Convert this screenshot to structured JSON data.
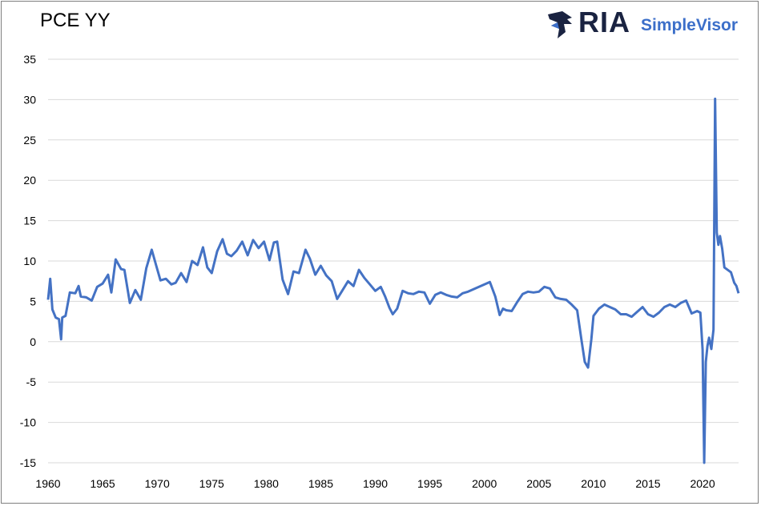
{
  "title": "PCE YY",
  "logo": {
    "brand": "RIA",
    "product": "SimpleVisor"
  },
  "colors": {
    "line": "#4472c4",
    "grid": "#d9d9d9",
    "logo_dark": "#1a2341",
    "logo_accent": "#3c6fc9"
  },
  "chart_data": {
    "type": "line",
    "title": "PCE YY",
    "xlabel": "",
    "ylabel": "",
    "xlim": [
      1960,
      2023.3
    ],
    "ylim": [
      -15,
      35
    ],
    "y_ticks": [
      35,
      30,
      25,
      20,
      15,
      10,
      5,
      0,
      -5,
      -10,
      -15
    ],
    "x_ticks": [
      1960,
      1965,
      1970,
      1975,
      1980,
      1985,
      1990,
      1995,
      2000,
      2005,
      2010,
      2015,
      2020
    ],
    "grid": true,
    "legend": "none",
    "series": [
      {
        "x": [
          1960.0,
          1960.2,
          1960.4,
          1960.7,
          1961.0,
          1961.2,
          1961.3,
          1961.6,
          1962.0,
          1962.5,
          1962.8,
          1963.0,
          1963.5,
          1964.0,
          1964.5,
          1965.0,
          1965.5,
          1965.8,
          1966.2,
          1966.7,
          1967.0,
          1967.5,
          1968.0,
          1968.5,
          1969.0,
          1969.5,
          1969.9,
          1970.3,
          1970.8,
          1971.3,
          1971.7,
          1972.2,
          1972.7,
          1973.2,
          1973.7,
          1974.2,
          1974.6,
          1975.0,
          1975.5,
          1976.0,
          1976.4,
          1976.8,
          1977.3,
          1977.8,
          1978.3,
          1978.8,
          1979.3,
          1979.8,
          1980.3,
          1980.7,
          1981.0,
          1981.5,
          1982.0,
          1982.5,
          1983.0,
          1983.6,
          1984.0,
          1984.5,
          1985.0,
          1985.5,
          1986.0,
          1986.5,
          1987.0,
          1987.5,
          1988.0,
          1988.5,
          1989.0,
          1989.5,
          1990.0,
          1990.5,
          1990.9,
          1991.3,
          1991.6,
          1992.0,
          1992.5,
          1993.0,
          1993.5,
          1994.0,
          1994.5,
          1995.0,
          1995.5,
          1996.0,
          1996.5,
          1997.0,
          1997.5,
          1998.0,
          1998.5,
          1999.0,
          1999.5,
          2000.0,
          2000.5,
          2001.0,
          2001.4,
          2001.7,
          2002.0,
          2002.5,
          2003.0,
          2003.5,
          2004.0,
          2004.5,
          2005.0,
          2005.5,
          2006.0,
          2006.5,
          2007.0,
          2007.5,
          2008.0,
          2008.5,
          2008.9,
          2009.2,
          2009.5,
          2009.8,
          2010.0,
          2010.5,
          2011.0,
          2011.5,
          2012.0,
          2012.5,
          2013.0,
          2013.5,
          2014.0,
          2014.5,
          2015.0,
          2015.5,
          2016.0,
          2016.5,
          2017.0,
          2017.5,
          2018.0,
          2018.5,
          2019.0,
          2019.5,
          2019.8,
          2020.0,
          2020.15,
          2020.3,
          2020.45,
          2020.6,
          2020.8,
          2021.0,
          2021.15,
          2021.3,
          2021.45,
          2021.6,
          2021.8,
          2022.0,
          2022.3,
          2022.6,
          2022.9,
          2023.1,
          2023.3
        ],
        "y": [
          5.2,
          7.8,
          4.0,
          3.0,
          2.8,
          0.3,
          3.0,
          3.2,
          6.1,
          6.0,
          6.9,
          5.6,
          5.5,
          5.1,
          6.8,
          7.2,
          8.3,
          6.1,
          10.2,
          9.0,
          8.9,
          4.8,
          6.4,
          5.2,
          9.1,
          11.4,
          9.5,
          7.6,
          7.8,
          7.1,
          7.3,
          8.5,
          7.4,
          10.0,
          9.5,
          11.7,
          9.2,
          8.5,
          11.2,
          12.7,
          10.9,
          10.6,
          11.3,
          12.4,
          10.7,
          12.6,
          11.6,
          12.4,
          10.1,
          12.3,
          12.4,
          7.7,
          5.9,
          8.7,
          8.5,
          11.4,
          10.3,
          8.3,
          9.4,
          8.2,
          7.5,
          5.3,
          6.4,
          7.5,
          6.9,
          8.9,
          7.9,
          7.1,
          6.3,
          6.8,
          5.6,
          4.2,
          3.4,
          4.1,
          6.3,
          6.0,
          5.9,
          6.2,
          6.1,
          4.7,
          5.8,
          6.1,
          5.8,
          5.6,
          5.5,
          6.0,
          6.2,
          6.5,
          6.8,
          7.1,
          7.4,
          5.6,
          3.3,
          4.1,
          3.9,
          3.8,
          4.9,
          5.9,
          6.2,
          6.1,
          6.2,
          6.8,
          6.6,
          5.5,
          5.3,
          5.2,
          4.6,
          3.9,
          0.2,
          -2.5,
          -3.2,
          0.3,
          3.2,
          4.1,
          4.6,
          4.3,
          4.0,
          3.4,
          3.4,
          3.1,
          3.7,
          4.3,
          3.4,
          3.1,
          3.6,
          4.3,
          4.6,
          4.3,
          4.8,
          5.1,
          3.5,
          3.8,
          3.6,
          -1.0,
          -15.0,
          -2.5,
          -0.5,
          0.5,
          -0.9,
          1.5,
          30.1,
          13.5,
          12.0,
          13.1,
          11.5,
          9.2,
          8.9,
          8.6,
          7.3,
          6.9,
          6.0
        ]
      }
    ]
  }
}
